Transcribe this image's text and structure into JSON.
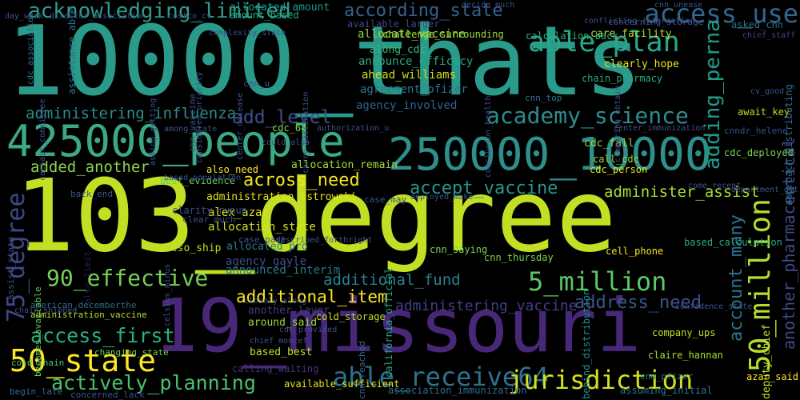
{
  "words": [
    {
      "text": "10000_thats",
      "color": "#2a9a8a"
    },
    {
      "text": "103_degree",
      "color": "#c2df23"
    },
    {
      "text": "19_missouri",
      "color": "#472878"
    },
    {
      "text": "425000_people",
      "color": "#3aa984"
    },
    {
      "text": "250000_10000",
      "color": "#2e8f8b"
    },
    {
      "text": "able_plan",
      "color": "#28a789"
    },
    {
      "text": "access_use",
      "color": "#30678d"
    },
    {
      "text": "acknowledging_limited",
      "color": "#2f9c8a"
    },
    {
      "text": "according_state",
      "color": "#35628d"
    },
    {
      "text": "academy_science",
      "color": "#2c8c8d"
    },
    {
      "text": "adding_perna",
      "color": "#1e9b8a"
    },
    {
      "text": "administering_influenza",
      "color": "#2c8c8d"
    },
    {
      "text": "add_level",
      "color": "#3d5089"
    },
    {
      "text": "added_another",
      "color": "#8bd24d"
    },
    {
      "text": "across_need",
      "color": "#f0e51d"
    },
    {
      "text": "accept_vaccine",
      "color": "#26968b"
    },
    {
      "text": "administer_assist",
      "color": "#aadc32"
    },
    {
      "text": "90_effective",
      "color": "#74d055"
    },
    {
      "text": "5_million",
      "color": "#5cc863"
    },
    {
      "text": "additional_fund",
      "color": "#25838e"
    },
    {
      "text": "additional_item",
      "color": "#fde725"
    },
    {
      "text": "address_need",
      "color": "#3b528b"
    },
    {
      "text": "administering_vaccine",
      "color": "#433e85"
    },
    {
      "text": "access_first",
      "color": "#2ab07f"
    },
    {
      "text": "50_state",
      "color": "#fde725"
    },
    {
      "text": "able_receive64",
      "color": "#2d718e"
    },
    {
      "text": "jurisdiction",
      "color": "#d2e21b"
    },
    {
      "text": "actively_planning",
      "color": "#4ac16d"
    },
    {
      "text": "75_degree",
      "color": "#3f4788"
    },
    {
      "text": "account_many",
      "color": "#2c728e"
    },
    {
      "text": "50_million",
      "color": "#b4de2c"
    },
    {
      "text": "another_pharmaceutical",
      "color": "#3e4989"
    },
    {
      "text": "allocate_vaccine",
      "color": "#8fd744"
    },
    {
      "text": "announce_efficacy",
      "color": "#25ac82"
    },
    {
      "text": "ahead_williams",
      "color": "#c8e020"
    },
    {
      "text": "agreement_pfizer",
      "color": "#2a768e"
    },
    {
      "text": "agency_involved",
      "color": "#34618d"
    },
    {
      "text": "along_cdc",
      "color": "#38b977"
    },
    {
      "text": "allocated_amount",
      "color": "#1f978b"
    },
    {
      "text": "amount_based",
      "color": "#22a884"
    },
    {
      "text": "available_larger",
      "color": "#414487"
    },
    {
      "text": "cdc_association",
      "color": "#2d708e"
    },
    {
      "text": "assistance_able",
      "color": "#2b748e"
    },
    {
      "text": "cdc_fall",
      "color": "#8fd744"
    },
    {
      "text": "call_cdc",
      "color": "#9bd93c"
    },
    {
      "text": "cdc_person",
      "color": "#e5e419"
    },
    {
      "text": "cdc_64",
      "color": "#84d44b"
    },
    {
      "text": "allocation_remain",
      "color": "#a5db36"
    },
    {
      "text": "also_need",
      "color": "#fde725"
    },
    {
      "text": "administration_ostrowski",
      "color": "#e2e418"
    },
    {
      "text": "alex_azar",
      "color": "#e2e418"
    },
    {
      "text": "allocation_state",
      "color": "#d2e21b"
    },
    {
      "text": "allocated_pro",
      "color": "#277f8e"
    },
    {
      "text": "agency_gayle",
      "color": "#3b528b"
    },
    {
      "text": "also_ship",
      "color": "#b8de29"
    },
    {
      "text": "announced_interim",
      "color": "#2a788e"
    },
    {
      "text": "american_decemberthe",
      "color": "#31688e"
    },
    {
      "text": "administration_vaccine",
      "color": "#b5de2b"
    },
    {
      "text": "another_layer",
      "color": "#443a83"
    },
    {
      "text": "around_said",
      "color": "#9dd93b"
    },
    {
      "text": "based_best",
      "color": "#c0df25"
    },
    {
      "text": "calling_waiting",
      "color": "#46337e"
    },
    {
      "text": "cell_phone",
      "color": "#f1e51d"
    },
    {
      "text": "based_calculation",
      "color": "#25ac82"
    },
    {
      "text": "cdc_deployed",
      "color": "#7ad151"
    },
    {
      "text": "await_key",
      "color": "#bddf26"
    },
    {
      "text": "clearly_hope",
      "color": "#e5e419"
    },
    {
      "text": "asked_cnn",
      "color": "#2e6f8e"
    },
    {
      "text": "cnn_top",
      "color": "#2a778e"
    },
    {
      "text": "chain_pharmacy",
      "color": "#26ad81"
    },
    {
      "text": "care_facility",
      "color": "#b2dd2d"
    },
    {
      "text": "calculation_back",
      "color": "#28ae80"
    },
    {
      "text": "chief_staff",
      "color": "#3f4889"
    },
    {
      "text": "challenge_surrounding",
      "color": "#a0da39"
    },
    {
      "text": "approach_distributing",
      "color": "#2f6c8e"
    },
    {
      "text": "best_evidence",
      "color": "#63cb5f"
    },
    {
      "text": "also_limit",
      "color": "#2d1a5a"
    },
    {
      "text": "company_ups",
      "color": "#c2df23"
    },
    {
      "text": "claire_hannan",
      "color": "#aadc32"
    },
    {
      "text": "deputy_chief",
      "color": "#b8de29"
    },
    {
      "text": "azar_said",
      "color": "#fde725"
    },
    {
      "text": "available_sufficient",
      "color": "#e2e418"
    },
    {
      "text": "assuming_initial",
      "color": "#2a788e"
    },
    {
      "text": "association_immunization",
      "color": "#2f6c8e"
    },
    {
      "text": "concerned_lack",
      "color": "#3b528b"
    },
    {
      "text": "begin_late",
      "color": "#31688e"
    },
    {
      "text": "cnn_saying",
      "color": "#7ad151"
    },
    {
      "text": "cnn_thursday",
      "color": "#7ad151"
    },
    {
      "text": "california_official",
      "color": "#22a884"
    },
    {
      "text": "behind_distribution",
      "color": "#238a8d"
    },
    {
      "text": "cnn_pfizer",
      "color": "#277f8e"
    },
    {
      "text": "cold_chain",
      "color": "#52c569"
    },
    {
      "text": "changing_state",
      "color": "#73d056"
    },
    {
      "text": "cold_storage",
      "color": "#c2df23"
    },
    {
      "text": "cnn_reached",
      "color": "#31688e"
    },
    {
      "text": "becomes_available",
      "color": "#5ec962"
    },
    {
      "text": "cnn_u",
      "color": "#3b528b"
    },
    {
      "text": "cv_good",
      "color": "#3b528b"
    },
    {
      "text": "cnndr_helene",
      "color": "#3b528b"
    },
    {
      "text": "come_recent",
      "color": "#3b528b"
    },
    {
      "text": "department_get",
      "color": "#3b528b"
    },
    {
      "text": "assist_state",
      "color": "#3b528b"
    },
    {
      "text": "back_end",
      "color": "#3b528b"
    },
    {
      "text": "clarity_runup",
      "color": "#3b528b"
    },
    {
      "text": "clear_much",
      "color": "#3b528b"
    },
    {
      "text": "celsius_minus",
      "color": "#3b528b"
    },
    {
      "text": "case_past",
      "color": "#3b528b"
    },
    {
      "text": "case_may",
      "color": "#3b528b"
    },
    {
      "text": "confidence_state",
      "color": "#3b528b"
    },
    {
      "text": "considered_priority",
      "color": "#3b528b"
    },
    {
      "text": "chain_shipped",
      "color": "#3b528b"
    },
    {
      "text": "among_state",
      "color": "#3b528b"
    },
    {
      "text": "based_population",
      "color": "#3b528b"
    },
    {
      "text": "concerning_storage",
      "color": "#3b528b"
    },
    {
      "text": "cnn_unease",
      "color": "#3b528b"
    },
    {
      "text": "cnn_vaccine",
      "color": "#3b528b"
    },
    {
      "text": "asking_getting",
      "color": "#3b528b"
    },
    {
      "text": "carry_vaccination",
      "color": "#3b528b"
    },
    {
      "text": "conclusion_health",
      "color": "#3b528b"
    },
    {
      "text": "center_immunization",
      "color": "#3b528b"
    },
    {
      "text": "authorization_u",
      "color": "#3b528b"
    },
    {
      "text": "could_also",
      "color": "#3b528b"
    },
    {
      "text": "chief_moncef",
      "color": "#3b528b"
    },
    {
      "text": "cdc_provided",
      "color": "#3b528b"
    },
    {
      "text": "closely_along",
      "color": "#3b528b"
    },
    {
      "text": "described_forthright",
      "color": "#3b528b"
    },
    {
      "text": "deployed_make",
      "color": "#3b528b"
    },
    {
      "text": "clamoring_obtain",
      "color": "#3b528b"
    },
    {
      "text": "center_disease",
      "color": "#3b528b"
    },
    {
      "text": "cochair_committee",
      "color": "#3b528b"
    },
    {
      "text": "complexity_state",
      "color": "#3b528b"
    },
    {
      "text": "day_week",
      "color": "#3b528b"
    },
    {
      "text": "costco_cv",
      "color": "#3b528b"
    },
    {
      "text": "conflicting_information",
      "color": "#3b528b"
    },
    {
      "text": "decide_much",
      "color": "#3b528b"
    },
    {
      "text": "director_association",
      "color": "#3b528b"
    },
    {
      "text": "development_drug",
      "color": "#3b528b"
    }
  ]
}
